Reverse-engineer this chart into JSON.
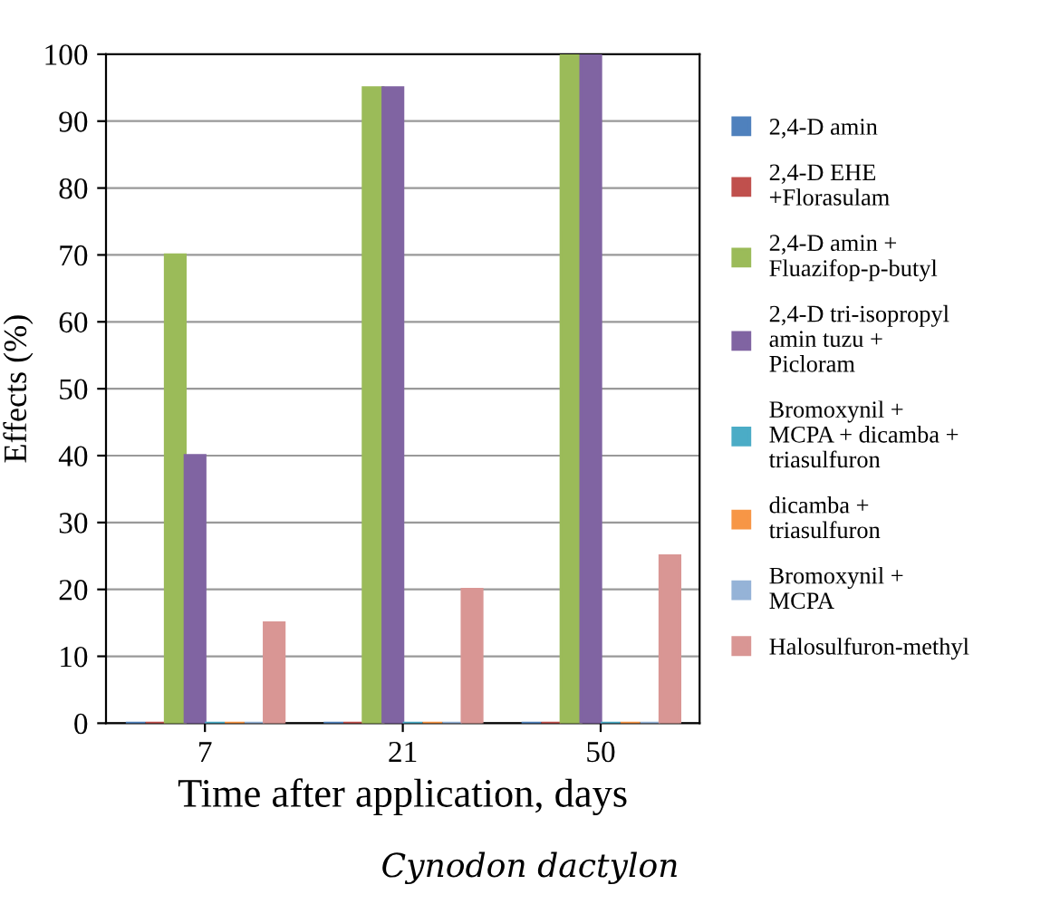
{
  "chart_data": {
    "type": "bar",
    "xlabel": "Time after application, days",
    "ylabel": "Effects (%)",
    "categories": [
      "7",
      "21",
      "50"
    ],
    "series": [
      {
        "name": "2,4-D amin",
        "color": "#4f81bd",
        "values": [
          0,
          0,
          0
        ]
      },
      {
        "name": "2,4-D EHE\n+Florasulam",
        "color": "#c0504d",
        "values": [
          0,
          0,
          0
        ]
      },
      {
        "name": "2,4-D amin +\nFluazifop-p-butyl",
        "color": "#9bbb59",
        "values": [
          70,
          95,
          100
        ]
      },
      {
        "name": "2,4-D tri-isopropyl\namin tuzu +\nPicloram",
        "color": "#8064a2",
        "values": [
          40,
          95,
          100
        ]
      },
      {
        "name": "Bromoxynil +\nMCPA + dicamba +\ntriasulfuron",
        "color": "#4bacc6",
        "values": [
          0,
          0,
          0
        ]
      },
      {
        "name": "dicamba +\ntriasulfuron",
        "color": "#f79646",
        "values": [
          0,
          0,
          0
        ]
      },
      {
        "name": "Bromoxynil +\nMCPA",
        "color": "#95b3d7",
        "values": [
          0,
          0,
          0
        ]
      },
      {
        "name": "Halosulfuron-methyl",
        "color": "#d99694",
        "values": [
          15,
          20,
          25
        ]
      }
    ],
    "ylim": [
      0,
      100
    ],
    "yticks": [
      0,
      10,
      20,
      30,
      40,
      50,
      60,
      70,
      80,
      90,
      100
    ],
    "grid": "y",
    "legend": "right",
    "annotations": [
      "Cynodon dactylon"
    ]
  }
}
